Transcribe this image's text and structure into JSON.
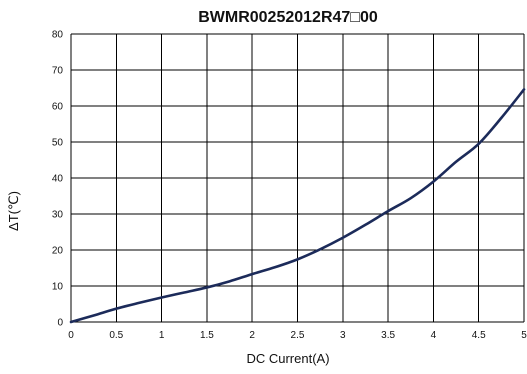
{
  "chart_data": {
    "type": "line",
    "title": "BWMR00252012R47□00",
    "xlabel": "DC Current(A)",
    "ylabel": "ΔT(℃)",
    "xlim": [
      0,
      5
    ],
    "ylim": [
      0,
      80
    ],
    "xticks": [
      "0",
      "0.5",
      "1",
      "1.5",
      "2",
      "2.5",
      "3",
      "3.5",
      "4",
      "4.5",
      "5"
    ],
    "yticks": [
      "0",
      "10",
      "20",
      "30",
      "40",
      "50",
      "60",
      "70",
      "80"
    ],
    "grid": true,
    "legend": "none",
    "series": [
      {
        "color": "#1c2b5a",
        "x": [
          0,
          0.25,
          0.5,
          0.75,
          1,
          1.25,
          1.5,
          1.75,
          2,
          2.25,
          2.5,
          2.75,
          3,
          3.25,
          3.5,
          3.75,
          4,
          4.25,
          4.5,
          4.75,
          5
        ],
        "y": [
          0,
          1.8,
          3.7,
          5.3,
          6.8,
          8.2,
          9.6,
          11.3,
          13.3,
          15.2,
          17.4,
          20.2,
          23.4,
          27.0,
          30.8,
          34.4,
          39.0,
          44.5,
          49.5,
          56.7,
          64.6
        ]
      }
    ]
  }
}
